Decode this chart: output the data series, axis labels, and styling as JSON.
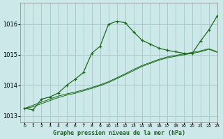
{
  "title": "Graphe pression niveau de la mer (hPa)",
  "bg_color": "#cce8e8",
  "grid_color": "#aacccc",
  "line_color": "#1a6b1a",
  "xlim": [
    -0.5,
    23
  ],
  "ylim": [
    1012.8,
    1016.7
  ],
  "yticks": [
    1013,
    1014,
    1015,
    1016
  ],
  "xtick_labels": [
    "0",
    "1",
    "2",
    "3",
    "4",
    "5",
    "6",
    "7",
    "8",
    "9",
    "10",
    "11",
    "12",
    "13",
    "14",
    "15",
    "16",
    "17",
    "18",
    "19",
    "20",
    "21",
    "22",
    "23"
  ],
  "series1_x": [
    0,
    1,
    2,
    3,
    4,
    5,
    6,
    7,
    8,
    9,
    10,
    11,
    12,
    13,
    14,
    15,
    16,
    17,
    18,
    19,
    20,
    21,
    22,
    23
  ],
  "series1_y": [
    1013.25,
    1013.35,
    1013.45,
    1013.55,
    1013.65,
    1013.72,
    1013.78,
    1013.85,
    1013.93,
    1014.02,
    1014.12,
    1014.25,
    1014.38,
    1014.52,
    1014.65,
    1014.75,
    1014.85,
    1014.93,
    1014.98,
    1015.03,
    1015.08,
    1015.13,
    1015.2,
    1015.1
  ],
  "series2_x": [
    0,
    1,
    2,
    3,
    4,
    5,
    6,
    7,
    8,
    9,
    10,
    11,
    12,
    13,
    14,
    15,
    16,
    17,
    18,
    19,
    20,
    21,
    22,
    23
  ],
  "series2_y": [
    1013.25,
    1013.3,
    1013.4,
    1013.5,
    1013.6,
    1013.68,
    1013.74,
    1013.82,
    1013.9,
    1013.99,
    1014.09,
    1014.22,
    1014.35,
    1014.48,
    1014.62,
    1014.72,
    1014.82,
    1014.9,
    1014.95,
    1015.0,
    1015.05,
    1015.1,
    1015.18,
    1015.08
  ],
  "series3_x": [
    0,
    1,
    2,
    3,
    4,
    5,
    6,
    7,
    8,
    9,
    10,
    11,
    12,
    13,
    14,
    15,
    16,
    17,
    18,
    19,
    20,
    21,
    22,
    23
  ],
  "series3_y": [
    1013.25,
    1013.2,
    1013.55,
    1013.62,
    1013.75,
    1014.0,
    1014.2,
    1014.42,
    1015.05,
    1015.28,
    1016.0,
    1016.1,
    1016.05,
    1015.75,
    1015.48,
    1015.35,
    1015.22,
    1015.15,
    1015.1,
    1015.05,
    1015.05,
    1015.45,
    1015.82,
    1016.28
  ]
}
